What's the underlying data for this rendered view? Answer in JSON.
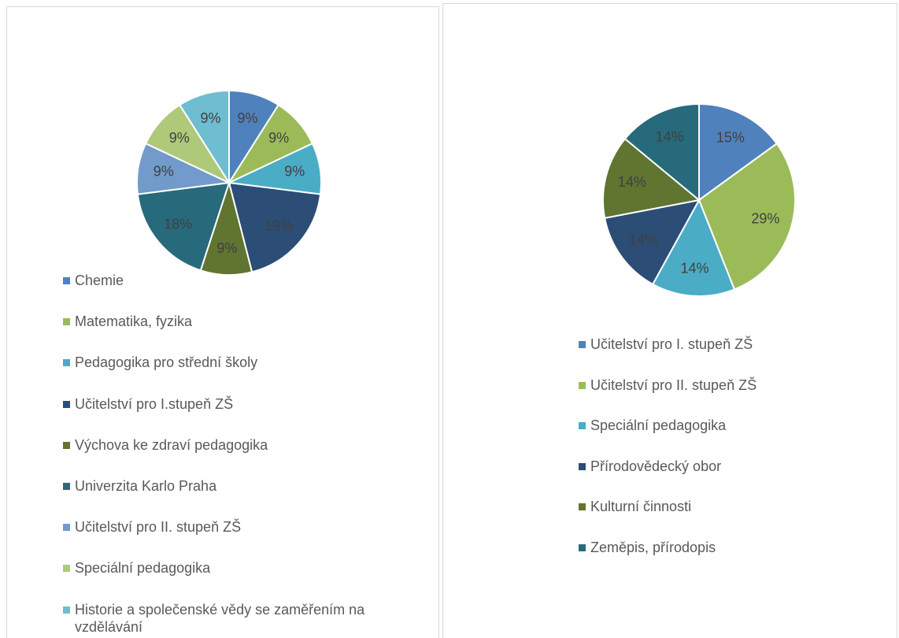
{
  "chart_data": [
    {
      "type": "pie",
      "categories": [
        "Chemie",
        "Matematika, fyzika",
        "Pedagogika pro střední školy",
        "Učitelství pro I.stupeň ZŠ",
        "Výchova ke zdraví pedagogika",
        "Univerzita Karlo Praha",
        "Učitelství pro II. stupeň ZŠ",
        "Speciální pedagogika",
        "Historie a společenské vědy se zaměřením na vzdělávání"
      ],
      "values": [
        9,
        9,
        9,
        19,
        9,
        18,
        9,
        9,
        9
      ],
      "value_labels": [
        "9%",
        "9%",
        "9%",
        "19%",
        "9%",
        "18%",
        "9%",
        "9%",
        "9%"
      ],
      "colors": [
        "#4f81bd",
        "#9bbb59",
        "#4bacc6",
        "#2c4d75",
        "#5f7530",
        "#276a7c",
        "#729aca",
        "#afc97a",
        "#6fbdd1"
      ]
    },
    {
      "type": "pie",
      "categories": [
        "Učitelství pro I. stupeň ZŠ",
        "Učitelství pro II. stupeň ZŠ",
        "Speciální pedagogika",
        "Přírodovědecký obor",
        "Kulturní činnosti",
        "Zeměpis, přírodopis"
      ],
      "values": [
        15,
        29,
        14,
        14,
        14,
        14
      ],
      "value_labels": [
        "15%",
        "29%",
        "14%",
        "14%",
        "14%",
        "14%"
      ],
      "colors": [
        "#4f81bd",
        "#9bbb59",
        "#4bacc6",
        "#2c4d75",
        "#5f7530",
        "#276a7c"
      ]
    }
  ]
}
